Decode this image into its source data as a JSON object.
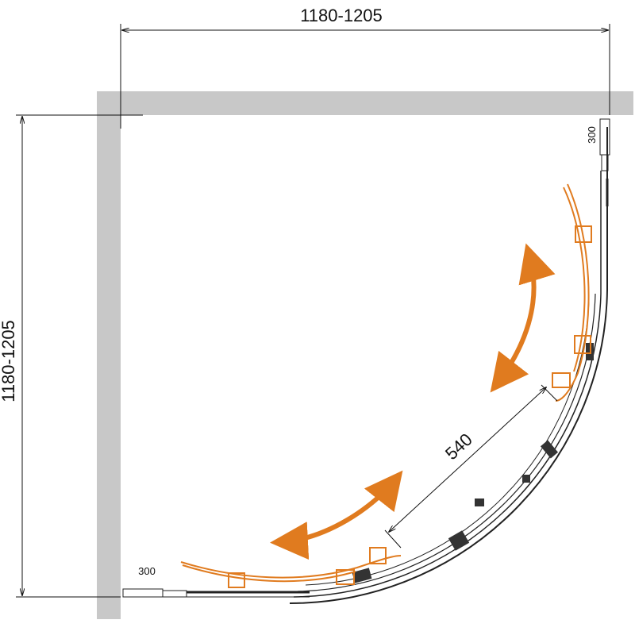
{
  "dimensions": {
    "width": "1180-1205",
    "depth": "1180-1205",
    "door_opening": "540",
    "side_panel_right": "300",
    "side_panel_bottom": "300"
  }
}
